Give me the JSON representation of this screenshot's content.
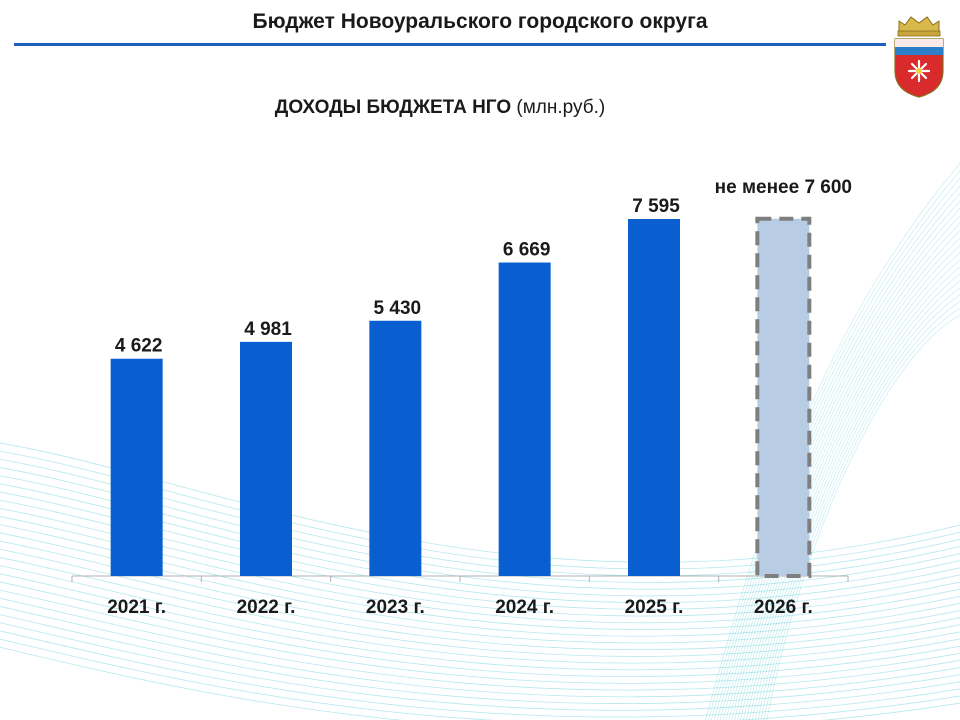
{
  "header": {
    "title": "Бюджет Новоуральского городского округа"
  },
  "colors": {
    "accent": "#1f5fb8",
    "bar_actual": "#0a5fd0",
    "bar_forecast": "#b8cce4",
    "bar_forecast_border": "#7f7f7f",
    "decor_lines": "#5ccbd6"
  },
  "chart_data": {
    "type": "bar",
    "title": "ДОХОДЫ БЮДЖЕТА НГО",
    "unit": "(млн.руб.)",
    "categories": [
      "2021 г.",
      "2022 г.",
      "2023 г.",
      "2024 г.",
      "2025 г.",
      "2026 г."
    ],
    "values": [
      4622,
      4981,
      5430,
      6669,
      7595,
      7600
    ],
    "data_labels": [
      "4 622",
      "4 981",
      "5 430",
      "6 669",
      "7 595",
      "не менее 7 600"
    ],
    "forecast": [
      false,
      false,
      false,
      false,
      false,
      true
    ],
    "ylim": [
      0,
      8000
    ],
    "grid": false,
    "legend": "none"
  }
}
